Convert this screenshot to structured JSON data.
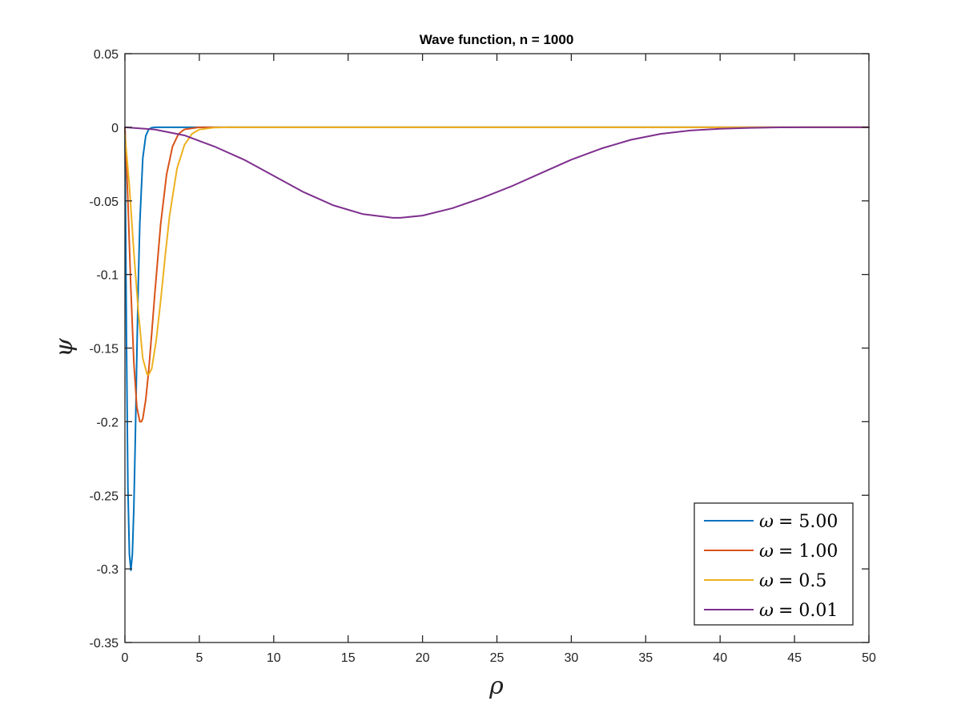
{
  "chart_data": {
    "type": "line",
    "title": "Wave function, n = 1000",
    "xlabel": "ρ",
    "ylabel": "ψ",
    "xlim": [
      0,
      50
    ],
    "ylim": [
      -0.35,
      0.05
    ],
    "xticks": [
      0,
      5,
      10,
      15,
      20,
      25,
      30,
      35,
      40,
      45,
      50
    ],
    "xtick_labels": [
      "0",
      "5",
      "10",
      "15",
      "20",
      "25",
      "30",
      "35",
      "40",
      "45",
      "50"
    ],
    "yticks": [
      0.05,
      0,
      -0.05,
      -0.1,
      -0.15,
      -0.2,
      -0.25,
      -0.3,
      -0.35
    ],
    "ytick_labels": [
      "0.05",
      "0",
      "-0.05",
      "-0.1",
      "-0.15",
      "-0.2",
      "-0.25",
      "-0.3",
      "-0.35"
    ],
    "grid": false,
    "legend_position": "bottom-right",
    "series": [
      {
        "name": "ω = 5.00",
        "symbol": "ω",
        "value_text": "= 5.00",
        "color": "#0072BD",
        "x": [
          0,
          0.1,
          0.2,
          0.3,
          0.4,
          0.5,
          0.6,
          0.7,
          0.8,
          0.9,
          1.0,
          1.2,
          1.4,
          1.6,
          1.8,
          2.0,
          2.5,
          3,
          4,
          50
        ],
        "y": [
          0,
          -0.14,
          -0.245,
          -0.29,
          -0.301,
          -0.29,
          -0.258,
          -0.21,
          -0.155,
          -0.105,
          -0.065,
          -0.021,
          -0.0058,
          -0.0013,
          -0.0003,
          0,
          0,
          0,
          0,
          0
        ]
      },
      {
        "name": "ω = 1.00",
        "symbol": "ω",
        "value_text": "= 1.00",
        "color": "#D95319",
        "x": [
          0,
          0.2,
          0.4,
          0.6,
          0.8,
          1.0,
          1.1,
          1.2,
          1.4,
          1.6,
          1.8,
          2.0,
          2.4,
          2.8,
          3.2,
          3.6,
          4.0,
          5,
          6,
          50
        ],
        "y": [
          0,
          -0.05,
          -0.11,
          -0.16,
          -0.19,
          -0.2,
          -0.2,
          -0.198,
          -0.185,
          -0.165,
          -0.14,
          -0.114,
          -0.066,
          -0.032,
          -0.013,
          -0.0045,
          -0.0014,
          0,
          0,
          0
        ]
      },
      {
        "name": "ω = 0.5",
        "symbol": "ω",
        "value_text": "= 0.5",
        "color": "#EDB120",
        "x": [
          0,
          0.3,
          0.6,
          0.9,
          1.2,
          1.5,
          1.6,
          1.8,
          2.1,
          2.4,
          2.7,
          3.0,
          3.5,
          4.0,
          4.5,
          5.0,
          6.0,
          7,
          50
        ],
        "y": [
          -0.005,
          -0.04,
          -0.085,
          -0.125,
          -0.157,
          -0.168,
          -0.168,
          -0.164,
          -0.145,
          -0.118,
          -0.088,
          -0.06,
          -0.028,
          -0.012,
          -0.0045,
          -0.0015,
          -0.0002,
          0,
          0
        ]
      },
      {
        "name": "ω = 0.01",
        "symbol": "ω",
        "value_text": "= 0.01",
        "color": "#7E2F8E",
        "x": [
          0,
          2,
          4,
          6,
          8,
          10,
          12,
          14,
          16,
          18,
          18.5,
          20,
          22,
          24,
          26,
          28,
          30,
          32,
          34,
          36,
          38,
          40,
          42,
          44,
          46,
          50
        ],
        "y": [
          0,
          -0.0015,
          -0.0055,
          -0.013,
          -0.022,
          -0.033,
          -0.044,
          -0.053,
          -0.059,
          -0.0615,
          -0.0615,
          -0.06,
          -0.055,
          -0.048,
          -0.04,
          -0.031,
          -0.022,
          -0.0145,
          -0.0085,
          -0.0045,
          -0.0022,
          -0.001,
          -0.0004,
          -0.0001,
          0,
          0
        ]
      }
    ]
  }
}
